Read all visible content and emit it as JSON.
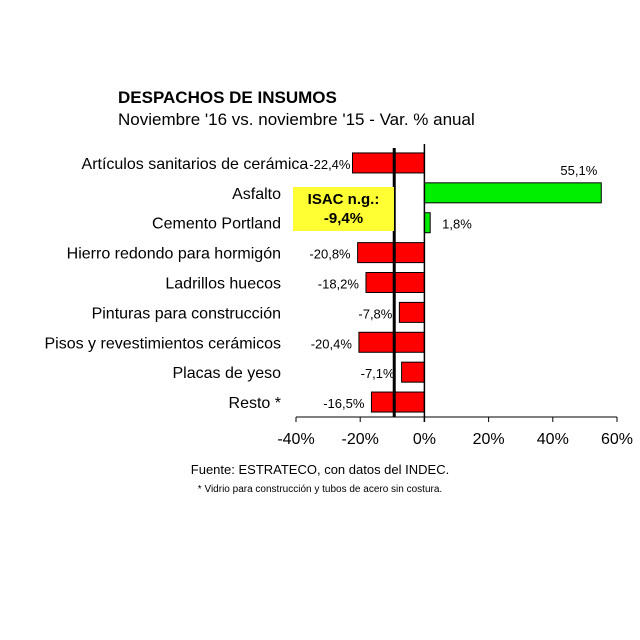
{
  "chart_data": {
    "type": "bar",
    "orientation": "horizontal",
    "title": "DESPACHOS DE INSUMOS",
    "subtitle": "Noviembre '16 vs. noviembre '15 - Var. % anual",
    "categories": [
      "Artículos sanitarios de cerámica",
      "Asfalto",
      "Cemento Portland",
      "Hierro redondo para hormigón",
      "Ladrillos huecos",
      "Pinturas para construcción",
      "Pisos y revestimientos cerámicos",
      "Placas de yeso",
      "Resto *"
    ],
    "values": [
      -22.4,
      55.1,
      1.8,
      -20.8,
      -18.2,
      -7.8,
      -20.4,
      -7.1,
      -16.5
    ],
    "value_labels": [
      "-22,4%",
      "55,1%",
      "1,8%",
      "-20,8%",
      "-18,2%",
      "-7,8%",
      "-20,4%",
      "-7,1%",
      "-16,5%"
    ],
    "xlim": [
      -40,
      60
    ],
    "x_ticks": [
      -40,
      -20,
      0,
      20,
      40,
      60
    ],
    "x_tick_labels": [
      "-40%",
      "-20%",
      "0%",
      "20%",
      "40%",
      "60%"
    ],
    "reference_line": {
      "value": -9.4,
      "label_line1": "ISAC n.g.:",
      "label_line2": "-9,4%"
    },
    "grid": false,
    "colors": {
      "negative": "#ff0000",
      "positive": "#00ee00",
      "reference_box": "#ffff33"
    }
  },
  "notes": {
    "source": "Fuente: ESTRATECO, con datos del INDEC.",
    "footnote": "* Vidrio para construcción y tubos de acero sin costura."
  }
}
